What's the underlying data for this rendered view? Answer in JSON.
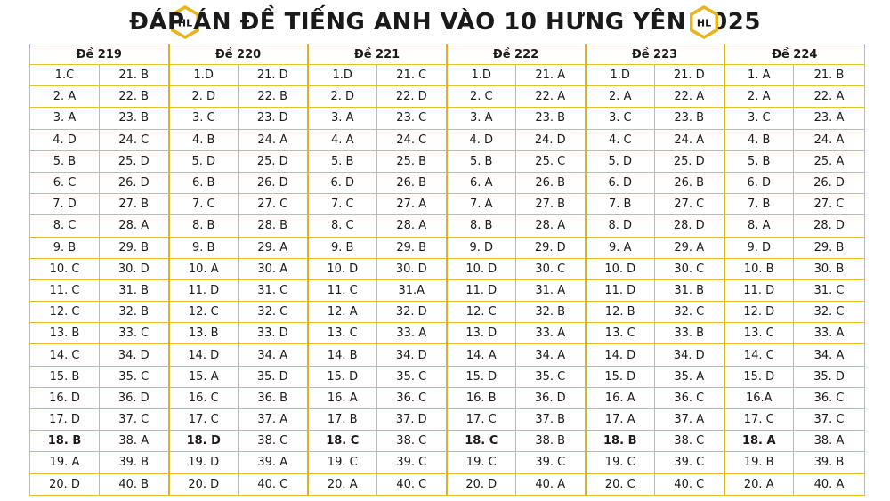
{
  "title": "ĐÁP ÁN ĐỀ TIẾNG ANH VÀO 10 HƯNG YÊN 2025",
  "logo": {
    "text": "HL",
    "gold": "#e8b51f"
  },
  "colors": {
    "border": "#e4c12f"
  },
  "exams": [
    {
      "name": "Đề 219",
      "col1": [
        "1.C",
        "2. A",
        "3. A",
        "4. D",
        "5. B",
        "6. C",
        "7. D",
        "8. C",
        "9. B",
        "10. C",
        "11. C",
        "12. C",
        "13. B",
        "14. C",
        "15. B",
        "16. D",
        "17. D",
        "18. B",
        "19. A",
        "20. D"
      ],
      "col2": [
        "21. B",
        "22. B",
        "23. B",
        "24. C",
        "25. D",
        "26. D",
        "27. B",
        "28. A",
        "29. B",
        "30. D",
        "31. B",
        "32. B",
        "33. C",
        "34. D",
        "35. C",
        "36. D",
        "37. C",
        "38. A",
        "39. B",
        "40. B"
      ]
    },
    {
      "name": "Đề 220",
      "col1": [
        "1.D",
        "2. D",
        "3. C",
        "4. B",
        "5. D",
        "6. B",
        "7. C",
        "8. B",
        "9. B",
        "10. A",
        "11. D",
        "12. C",
        "13. B",
        "14. D",
        "15. A",
        "16. C",
        "17. C",
        "18. D",
        "19. D",
        "20. D"
      ],
      "col2": [
        "21. D",
        "22. B",
        "23. D",
        "24. A",
        "25. D",
        "26. D",
        "27. C",
        "28. B",
        "29. A",
        "30. A",
        "31. C",
        "32. C",
        "33. D",
        "34. A",
        "35. D",
        "36. B",
        "37. A",
        "38. C",
        "39. A",
        "40. C"
      ]
    },
    {
      "name": "Đề 221",
      "col1": [
        "1.D",
        "2. D",
        "3. A",
        "4. A",
        "5. B",
        "6. D",
        "7. C",
        "8. C",
        "9. B",
        "10. D",
        "11. C",
        "12. A",
        "13. C",
        "14. B",
        "15. D",
        "16. A",
        "17. B",
        "18. C",
        "19. C",
        "20. A"
      ],
      "col2": [
        "21. C",
        "22. D",
        "23. C",
        "24. C",
        "25. B",
        "26. B",
        "27. A",
        "28. A",
        "29. B",
        "30. D",
        "31.A",
        "32. D",
        "33. A",
        "34. D",
        "35. C",
        "36. C",
        "37. D",
        "38. C",
        "39. C",
        "40. C"
      ]
    },
    {
      "name": "Đề 222",
      "col1": [
        "1.D",
        "2. C",
        "3. A",
        "4. D",
        "5. B",
        "6. A",
        "7. A",
        "8. B",
        "9. D",
        "10. D",
        "11. D",
        "12. C",
        "13. D",
        "14. A",
        "15. D",
        "16. B",
        "17. C",
        "18. C",
        "19. C",
        "20. D"
      ],
      "col2": [
        "21. A",
        "22. A",
        "23. B",
        "24. D",
        "25. C",
        "26. B",
        "27. B",
        "28. A",
        "29. D",
        "30. C",
        "31. A",
        "32. B",
        "33. A",
        "34. A",
        "35. C",
        "36. D",
        "37. B",
        "38. B",
        "39. C",
        "40. A"
      ]
    },
    {
      "name": "Đề 223",
      "col1": [
        "1.D",
        "2. A",
        "3. C",
        "4. C",
        "5. D",
        "6. D",
        "7. B",
        "8. D",
        "9. A",
        "10. D",
        "11. D",
        "12. B",
        "13. C",
        "14. D",
        "15. D",
        "16. A",
        "17. A",
        "18. B",
        "19. C",
        "20. C"
      ],
      "col2": [
        "21. D",
        "22. A",
        "23. B",
        "24. A",
        "25. D",
        "26. B",
        "27. C",
        "28. D",
        "29. A",
        "30. C",
        "31. B",
        "32. C",
        "33. B",
        "34. D",
        "35. A",
        "36. C",
        "37. A",
        "38. C",
        "39. C",
        "40. C"
      ]
    },
    {
      "name": "Đề 224",
      "col1": [
        "1.    A",
        "2. A",
        "3. C",
        "4. B",
        "5. B",
        "6. D",
        "7. B",
        "8. A",
        "9. D",
        "10. B",
        "11. D",
        "12. D",
        "13. C",
        "14. C",
        "15. D",
        "16.A",
        "17. C",
        "18. A",
        "19. B",
        "20. A"
      ],
      "col2": [
        "21. B",
        "22. A",
        "23. A",
        "24. A",
        "25. A",
        "26. D",
        "27. C",
        "28. D",
        "29. B",
        "30. B",
        "31. C",
        "32. C",
        "33. A",
        "34. A",
        "35. D",
        "36. C",
        "37. C",
        "38. A",
        "39. B",
        "40. A"
      ]
    }
  ]
}
